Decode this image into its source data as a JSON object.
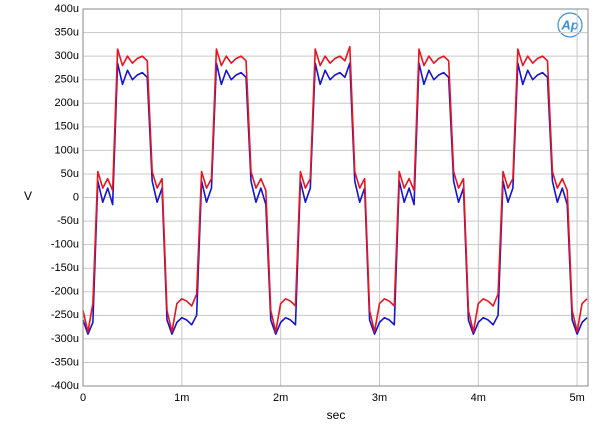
{
  "chart_data": {
    "type": "line",
    "logo": "Ap",
    "xlabel": "sec",
    "ylabel": "V",
    "xlim": [
      0,
      0.00511
    ],
    "ylim": [
      -0.0004,
      0.0004
    ],
    "grid": true,
    "xticks": [
      0,
      {
        "value": 0.001,
        "label": "1m"
      },
      {
        "value": 0.002,
        "label": "2m"
      },
      {
        "value": 0.003,
        "label": "3m"
      },
      {
        "value": 0.004,
        "label": "4m"
      },
      {
        "value": 0.005,
        "label": "5m"
      }
    ],
    "yticks": [
      {
        "value": -0.0004,
        "label": "-400u"
      },
      {
        "value": -0.00035,
        "label": "-350u"
      },
      {
        "value": -0.0003,
        "label": "-300u"
      },
      {
        "value": -0.00025,
        "label": "-250u"
      },
      {
        "value": -0.0002,
        "label": "-200u"
      },
      {
        "value": -0.00015,
        "label": "-150u"
      },
      {
        "value": -0.0001,
        "label": "-100u"
      },
      {
        "value": -5e-05,
        "label": "-50u"
      },
      0,
      {
        "value": 5e-05,
        "label": "50u"
      },
      {
        "value": 0.0001,
        "label": "100u"
      },
      {
        "value": 0.00015,
        "label": "150u"
      },
      {
        "value": 0.0002,
        "label": "200u"
      },
      {
        "value": 0.00025,
        "label": "250u"
      },
      {
        "value": 0.0003,
        "label": "300u"
      },
      {
        "value": 0.00035,
        "label": "350u"
      },
      {
        "value": 0.0004,
        "label": "400u"
      }
    ],
    "x": [
      0,
      5e-05,
      0.0001,
      0.00015,
      0.0002,
      0.00025,
      0.0003,
      0.00035,
      0.0004,
      0.00045,
      0.0005,
      0.00055,
      0.0006,
      0.00065,
      0.0007,
      0.00075,
      0.0008,
      0.00085,
      0.0009,
      0.00095,
      0.001,
      0.00105,
      0.0011,
      0.00115,
      0.0012,
      0.00125,
      0.0013,
      0.00135,
      0.0014,
      0.00145,
      0.0015,
      0.00155,
      0.0016,
      0.00165,
      0.0017,
      0.00175,
      0.0018,
      0.00185,
      0.0019,
      0.00195,
      0.002,
      0.00205,
      0.0021,
      0.00215,
      0.0022,
      0.00225,
      0.0023,
      0.00235,
      0.0024,
      0.00245,
      0.0025,
      0.00255,
      0.0026,
      0.00265,
      0.0027,
      0.00275,
      0.0028,
      0.00285,
      0.0029,
      0.00295,
      0.003,
      0.00305,
      0.0031,
      0.00315,
      0.0032,
      0.00325,
      0.0033,
      0.00335,
      0.0034,
      0.00345,
      0.0035,
      0.00355,
      0.0036,
      0.00365,
      0.0037,
      0.00375,
      0.0038,
      0.00385,
      0.0039,
      0.00395,
      0.004,
      0.00405,
      0.0041,
      0.00415,
      0.0042,
      0.00425,
      0.0043,
      0.00435,
      0.0044,
      0.00445,
      0.0045,
      0.00455,
      0.0046,
      0.00465,
      0.0047,
      0.00475,
      0.0048,
      0.00485,
      0.0049,
      0.00495,
      0.005,
      0.00505,
      0.0051
    ],
    "series": [
      {
        "color": "#e8141e",
        "values": [
          -0.00024,
          -0.000285,
          -0.000225,
          5.5e-05,
          2e-05,
          4e-05,
          1.5e-05,
          0.000315,
          0.00028,
          0.0003,
          0.000285,
          0.000295,
          0.0003,
          0.00029,
          5.5e-05,
          2e-05,
          4e-05,
          -0.00024,
          -0.000285,
          -0.000225,
          -0.000215,
          -0.00022,
          -0.00023,
          -0.000205,
          5.5e-05,
          2e-05,
          4e-05,
          0.000315,
          0.00028,
          0.0003,
          0.000285,
          0.000295,
          0.0003,
          0.00029,
          5.5e-05,
          2e-05,
          4e-05,
          1.5e-05,
          -0.00024,
          -0.000285,
          -0.000225,
          -0.000215,
          -0.00022,
          -0.00023,
          5.5e-05,
          2e-05,
          4e-05,
          0.000315,
          0.00028,
          0.0003,
          0.000285,
          0.000295,
          0.0003,
          0.00029,
          0.00032,
          5.5e-05,
          2e-05,
          4e-05,
          -0.00024,
          -0.000285,
          -0.000225,
          -0.000215,
          -0.00022,
          -0.00023,
          5.5e-05,
          2e-05,
          4e-05,
          1.5e-05,
          0.000315,
          0.00028,
          0.0003,
          0.000285,
          0.000295,
          0.0003,
          0.00029,
          5.5e-05,
          2e-05,
          4e-05,
          -0.00024,
          -0.000285,
          -0.000225,
          -0.000215,
          -0.00022,
          -0.00023,
          -0.000205,
          5.5e-05,
          2e-05,
          4e-05,
          0.000315,
          0.00028,
          0.0003,
          0.000285,
          0.000295,
          0.0003,
          0.00029,
          5.5e-05,
          2e-05,
          4e-05,
          1.5e-05,
          -0.00024,
          -0.000285,
          -0.000225,
          -0.000215
        ]
      },
      {
        "color": "#1414d2",
        "values": [
          -0.00026,
          -0.00029,
          -0.000265,
          3.5e-05,
          -1e-05,
          2e-05,
          -1.5e-05,
          0.000285,
          0.00024,
          0.00027,
          0.00025,
          0.00026,
          0.000265,
          0.000255,
          3.5e-05,
          -1e-05,
          2e-05,
          -0.00026,
          -0.00029,
          -0.000265,
          -0.000255,
          -0.00026,
          -0.00027,
          -0.00025,
          3.5e-05,
          -1e-05,
          2e-05,
          0.000285,
          0.00024,
          0.00027,
          0.00025,
          0.00026,
          0.000265,
          0.000255,
          3.5e-05,
          -1e-05,
          2e-05,
          -1.5e-05,
          -0.00026,
          -0.00029,
          -0.000265,
          -0.000255,
          -0.00026,
          -0.00027,
          3.5e-05,
          -1e-05,
          2e-05,
          0.000285,
          0.00024,
          0.00027,
          0.00025,
          0.00026,
          0.000265,
          0.000255,
          0.000285,
          3.5e-05,
          -1e-05,
          2e-05,
          -0.00026,
          -0.00029,
          -0.000265,
          -0.000255,
          -0.00026,
          -0.00027,
          3.5e-05,
          -1e-05,
          2e-05,
          -1.5e-05,
          0.000285,
          0.00024,
          0.00027,
          0.00025,
          0.00026,
          0.000265,
          0.000255,
          3.5e-05,
          -1e-05,
          2e-05,
          -0.00026,
          -0.00029,
          -0.000265,
          -0.000255,
          -0.00026,
          -0.00027,
          -0.00025,
          3.5e-05,
          -1e-05,
          2e-05,
          0.000285,
          0.00024,
          0.00027,
          0.00025,
          0.00026,
          0.000265,
          0.000255,
          3.5e-05,
          -1e-05,
          2e-05,
          -1.5e-05,
          -0.00026,
          -0.00029,
          -0.000265,
          -0.000255
        ]
      }
    ]
  }
}
